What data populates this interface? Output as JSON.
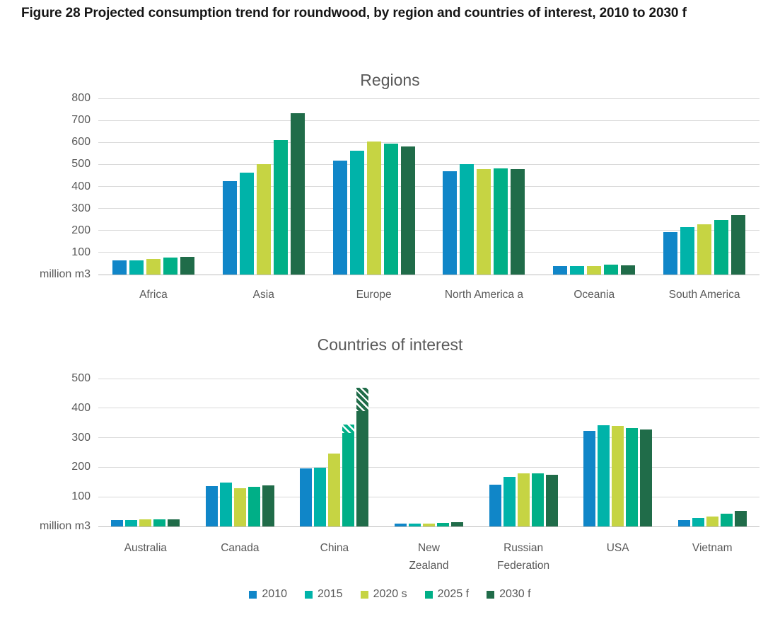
{
  "figure": {
    "title": "Figure 28 Projected consumption trend for roundwood, by region and countries of interest, 2010 to 2030 f"
  },
  "colors": {
    "series_2010": "#1086c8",
    "series_2015": "#00b3a9",
    "series_2020s": "#c6d443",
    "series_2025f": "#00af87",
    "series_2030f": "#206c49",
    "gridline": "#d9d9d9",
    "axis_text": "#595959"
  },
  "legend": {
    "items": [
      {
        "label": "2010",
        "color": "#1086c8"
      },
      {
        "label": "2015",
        "color": "#00b3a9"
      },
      {
        "label": "2020 s",
        "color": "#c6d443"
      },
      {
        "label": "2025 f",
        "color": "#00af87"
      },
      {
        "label": "2030 f",
        "color": "#206c49"
      }
    ]
  },
  "chart_data": [
    {
      "type": "bar",
      "title": "Regions",
      "ylabel": "million m3",
      "ylim": [
        0,
        800
      ],
      "yticks": [
        100,
        200,
        300,
        400,
        500,
        600,
        700,
        800
      ],
      "grid": true,
      "legend_position": "bottom",
      "categories": [
        "Africa",
        "Asia",
        "Europe",
        "North America a",
        "Oceania",
        "South America"
      ],
      "series": [
        {
          "name": "2010",
          "color": "#1086c8",
          "values": [
            65,
            425,
            516,
            470,
            40,
            194
          ]
        },
        {
          "name": "2015",
          "color": "#00b3a9",
          "values": [
            65,
            462,
            561,
            502,
            40,
            215
          ]
        },
        {
          "name": "2020 s",
          "color": "#c6d443",
          "values": [
            70,
            500,
            604,
            478,
            40,
            229
          ]
        },
        {
          "name": "2025 f",
          "color": "#00af87",
          "values": [
            78,
            612,
            595,
            483,
            44,
            247
          ]
        },
        {
          "name": "2030 f",
          "color": "#206c49",
          "values": [
            80,
            733,
            583,
            478,
            42,
            269
          ]
        }
      ]
    },
    {
      "type": "bar",
      "title": "Countries of interest",
      "ylabel": "million m3",
      "ylim": [
        0,
        500
      ],
      "yticks": [
        100,
        200,
        300,
        400,
        500
      ],
      "grid": true,
      "legend_position": "bottom",
      "categories": [
        "Australia",
        "Canada",
        "China",
        "New\nZealand",
        "Russian\nFederation",
        "USA",
        "Vietnam"
      ],
      "series": [
        {
          "name": "2010",
          "color": "#1086c8",
          "values": [
            22,
            137,
            197,
            10,
            140,
            322,
            22
          ]
        },
        {
          "name": "2015",
          "color": "#00b3a9",
          "values": [
            22,
            148,
            199,
            10,
            167,
            341,
            29
          ]
        },
        {
          "name": "2020 s",
          "color": "#c6d443",
          "values": [
            24,
            130,
            246,
            10,
            179,
            339,
            34
          ]
        },
        {
          "name": "2025 f",
          "color": "#00af87",
          "values": [
            25,
            135,
            {
              "solid": 315,
              "total": 345
            },
            13,
            179,
            333,
            44
          ]
        },
        {
          "name": "2030 f",
          "color": "#206c49",
          "values": [
            25,
            138,
            {
              "solid": 390,
              "total": 468
            },
            14,
            175,
            327,
            52
          ]
        }
      ]
    }
  ]
}
